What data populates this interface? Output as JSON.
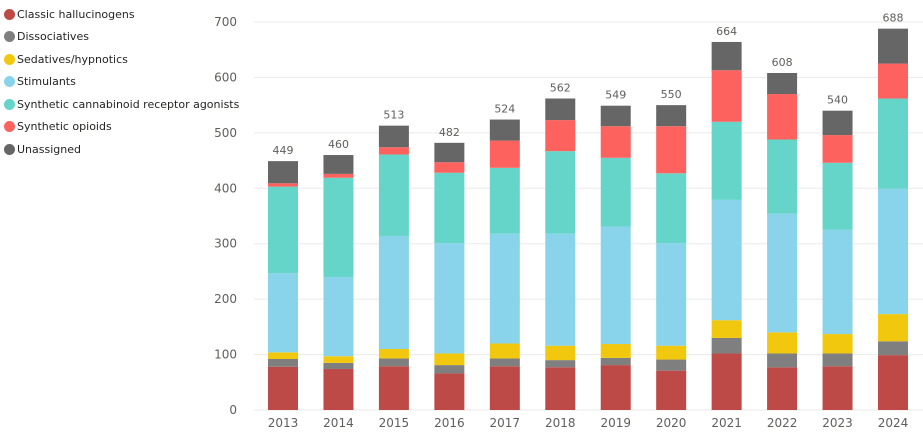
{
  "chart_data": {
    "type": "bar",
    "stacked": true,
    "title": "",
    "xlabel": "",
    "ylabel": "",
    "ylim": [
      0,
      700
    ],
    "yticks": [
      0,
      100,
      200,
      300,
      400,
      500,
      600,
      700
    ],
    "grid": true,
    "legend_position": "top-left",
    "categories": [
      "2013",
      "2014",
      "2015",
      "2016",
      "2017",
      "2018",
      "2019",
      "2020",
      "2021",
      "2022",
      "2023",
      "2024"
    ],
    "series": [
      {
        "name": "Classic hallucinogens",
        "color": "#be4a47",
        "values": [
          78,
          74,
          79,
          66,
          79,
          77,
          81,
          71,
          102,
          77,
          79,
          99
        ]
      },
      {
        "name": "Dissociatives",
        "color": "#7f7f7f",
        "values": [
          14,
          11,
          14,
          15,
          14,
          13,
          13,
          20,
          28,
          25,
          23,
          25
        ]
      },
      {
        "name": "Sedatives/hypnotics",
        "color": "#f2c80f",
        "values": [
          12,
          12,
          17,
          21,
          27,
          26,
          25,
          25,
          32,
          38,
          35,
          49
        ]
      },
      {
        "name": "Stimulants",
        "color": "#8ad4eb",
        "values": [
          143,
          143,
          204,
          199,
          198,
          202,
          212,
          185,
          217,
          214,
          188,
          226
        ]
      },
      {
        "name": "Synthetic cannabinoid receptor agonists",
        "color": "#66d5c9",
        "values": [
          156,
          179,
          147,
          127,
          119,
          149,
          124,
          126,
          141,
          134,
          121,
          163
        ]
      },
      {
        "name": "Synthetic opioids",
        "color": "#fd625e",
        "values": [
          6,
          7,
          13,
          19,
          49,
          56,
          57,
          85,
          93,
          82,
          50,
          63
        ]
      },
      {
        "name": "Unassigned",
        "color": "#666666",
        "values": [
          40,
          34,
          39,
          35,
          38,
          39,
          37,
          38,
          51,
          38,
          44,
          63
        ]
      }
    ],
    "totals": [
      449,
      460,
      513,
      482,
      524,
      562,
      549,
      550,
      664,
      608,
      540,
      688
    ]
  }
}
